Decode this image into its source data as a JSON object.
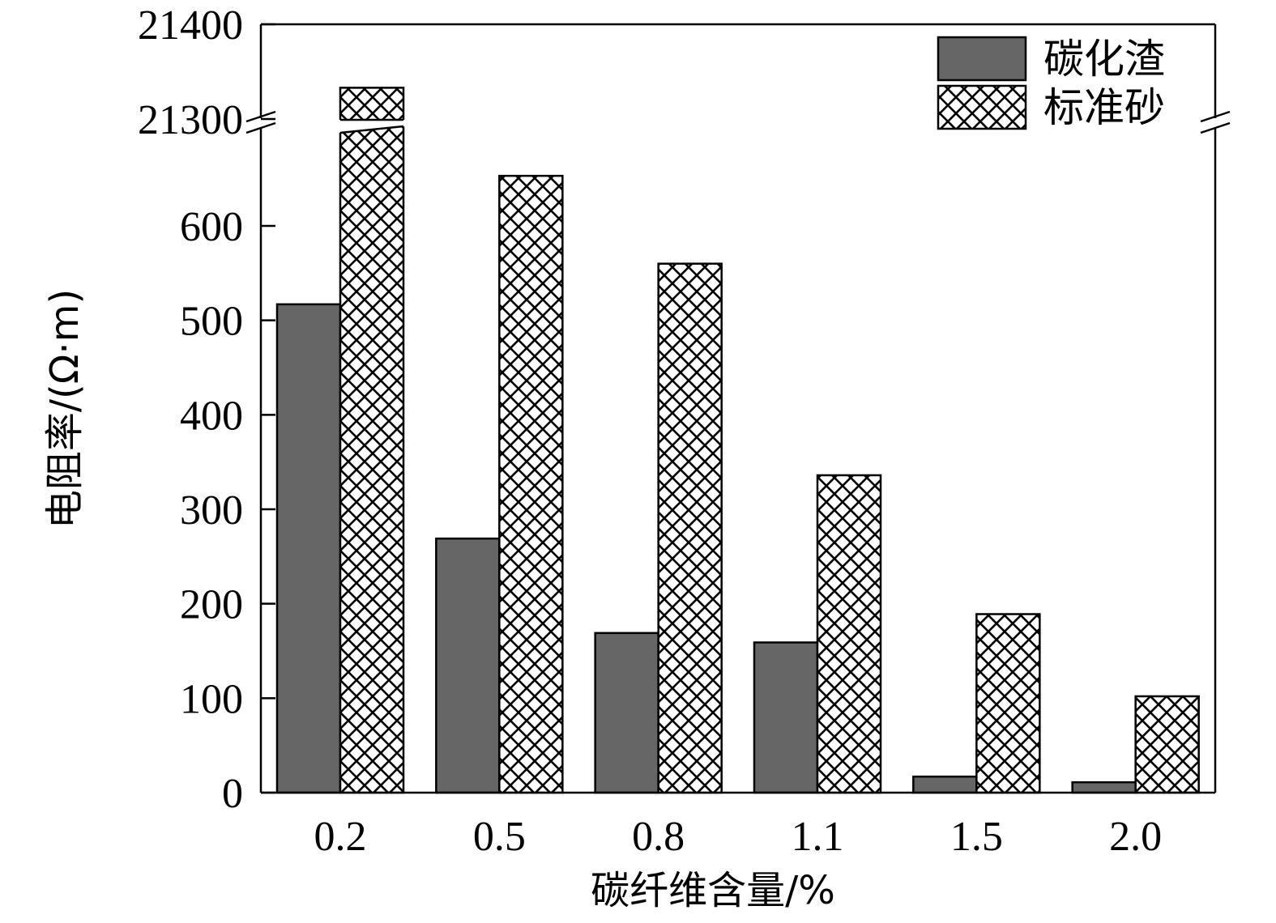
{
  "chart_data": {
    "type": "bar",
    "categories": [
      "0.2",
      "0.5",
      "0.8",
      "1.1",
      "1.5",
      "2.0"
    ],
    "series": [
      {
        "name": "碳化渣",
        "values": [
          517,
          269,
          169,
          159,
          17,
          11
        ],
        "color": "#666666",
        "pattern": "solid"
      },
      {
        "name": "标准砂",
        "values": [
          21333,
          653,
          560,
          336,
          189,
          102
        ],
        "color": "#ffffff",
        "pattern": "crosshatch"
      }
    ],
    "xlabel": "碳纤维含量/%",
    "ylabel": "电阻率/(Ω·m)",
    "ylim": [
      0,
      21400
    ],
    "axis_break": {
      "lower_range": [
        0,
        740
      ],
      "upper_range": [
        21300,
        21400
      ]
    },
    "yticks_lower": [
      "0",
      "100",
      "200",
      "300",
      "400",
      "500",
      "600"
    ],
    "yticks_upper": [
      "21300",
      "21400"
    ],
    "legend_position": "top-right",
    "grid": false
  }
}
